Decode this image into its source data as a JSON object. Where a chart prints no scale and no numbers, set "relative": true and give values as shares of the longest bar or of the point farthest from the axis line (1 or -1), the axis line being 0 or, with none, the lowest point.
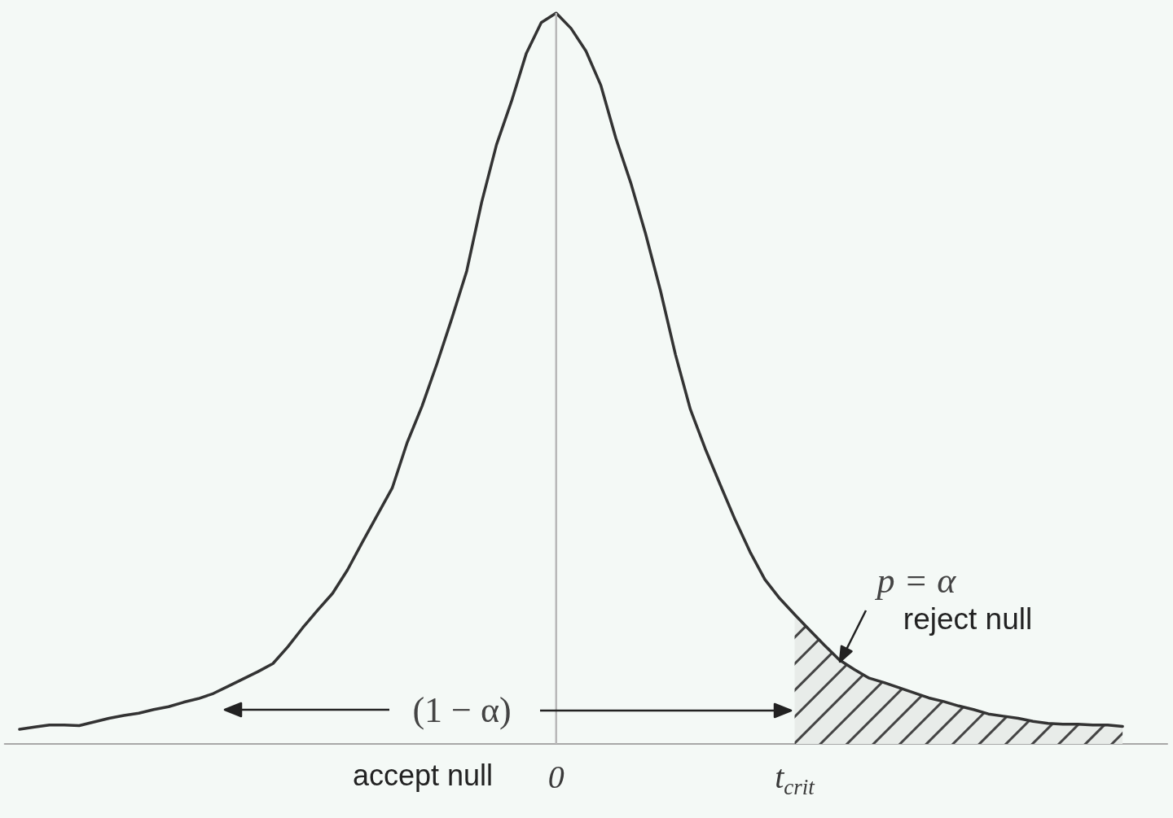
{
  "chart_data": {
    "type": "line",
    "relative": true,
    "categories": [
      null,
      null,
      null,
      null,
      null,
      null,
      null,
      null,
      null,
      null,
      null,
      null,
      null,
      null,
      null,
      null,
      null,
      null,
      null,
      null,
      null,
      null,
      null,
      null,
      null,
      null,
      null,
      null,
      null,
      null,
      null,
      null,
      null,
      null,
      null,
      null,
      null,
      "0",
      null,
      null,
      null,
      null,
      null,
      null,
      null,
      null,
      null,
      null,
      null,
      null,
      null,
      null,
      null,
      "t$_{crit}$",
      null,
      null,
      null,
      null,
      null,
      null,
      null,
      null,
      null,
      null,
      null,
      null,
      null,
      null,
      null,
      null,
      null,
      null,
      null,
      null,
      null,
      null,
      null,
      null,
      null
    ],
    "series": [
      {
        "type": "line",
        "color": "#333333",
        "values": [
          null,
          0.02,
          0.023,
          0.026,
          0.026,
          0.025,
          0.03,
          0.035,
          0.039,
          0.042,
          0.047,
          0.051,
          0.057,
          0.062,
          0.069,
          0.079,
          0.089,
          0.099,
          0.11,
          0.133,
          0.159,
          0.183,
          0.206,
          0.238,
          0.276,
          0.313,
          0.35,
          0.412,
          0.462,
          0.52,
          0.582,
          0.647,
          0.741,
          0.82,
          0.879,
          0.945,
          0.987,
          1,
          0.979,
          0.948,
          0.901,
          0.829,
          0.768,
          0.698,
          0.62,
          0.533,
          0.458,
          0.404,
          0.355,
          0.307,
          0.263,
          0.225,
          0.199,
          0.177,
          0.156,
          0.135,
          0.115,
          0.102,
          0.09,
          0.084,
          0.077,
          0.07,
          0.063,
          0.058,
          0.052,
          0.047,
          0.041,
          0.038,
          0.035,
          0.031,
          0.028,
          0.027,
          0.027,
          0.026,
          0.026,
          0.024,
          null,
          null,
          null
        ]
      },
      {
        "type": "area",
        "color": "#444444",
        "values": [
          null,
          null,
          null,
          null,
          null,
          null,
          null,
          null,
          null,
          null,
          null,
          null,
          null,
          null,
          null,
          null,
          null,
          null,
          null,
          null,
          null,
          null,
          null,
          null,
          null,
          null,
          null,
          null,
          null,
          null,
          null,
          null,
          null,
          null,
          null,
          null,
          null,
          null,
          null,
          null,
          null,
          null,
          null,
          null,
          null,
          null,
          null,
          null,
          null,
          null,
          null,
          null,
          null,
          0.177,
          0.156,
          0.135,
          0.115,
          0.102,
          0.09,
          0.084,
          0.077,
          0.07,
          0.063,
          0.058,
          0.052,
          0.047,
          0.041,
          0.038,
          0.035,
          0.031,
          0.028,
          0.027,
          0.027,
          0.026,
          0.026,
          0.024,
          null,
          null,
          null
        ]
      }
    ],
    "ref_lines": [
      {
        "axis": "x",
        "value": "0",
        "color": "#b8b8b8"
      }
    ],
    "annotations": [
      "(1 − α)",
      "accept null",
      "p = α",
      "reject null"
    ],
    "grid": false,
    "marker": "none"
  }
}
